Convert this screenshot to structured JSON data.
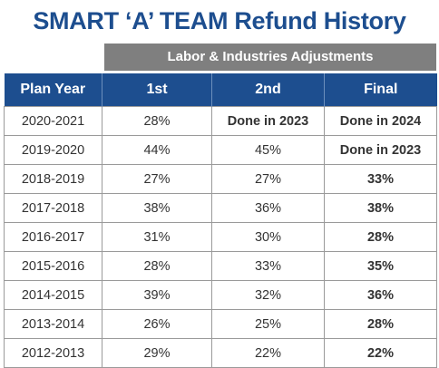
{
  "title": "SMART ‘A’ TEAM Refund History",
  "group_header": "Labor & Industries Adjustments",
  "columns": [
    "Plan Year",
    "1st",
    "2nd",
    "Final"
  ],
  "rows": [
    {
      "year": "2020-2021",
      "first": "28%",
      "second": "Done in 2023",
      "final": "Done in 2024",
      "second_bold": true
    },
    {
      "year": "2019-2020",
      "first": "44%",
      "second": "45%",
      "final": "Done in 2023",
      "second_bold": false
    },
    {
      "year": "2018-2019",
      "first": "27%",
      "second": "27%",
      "final": "33%",
      "second_bold": false
    },
    {
      "year": "2017-2018",
      "first": "38%",
      "second": "36%",
      "final": "38%",
      "second_bold": false
    },
    {
      "year": "2016-2017",
      "first": "31%",
      "second": "30%",
      "final": "28%",
      "second_bold": false
    },
    {
      "year": "2015-2016",
      "first": "28%",
      "second": "33%",
      "final": "35%",
      "second_bold": false
    },
    {
      "year": "2014-2015",
      "first": "39%",
      "second": "32%",
      "final": "36%",
      "second_bold": false
    },
    {
      "year": "2013-2014",
      "first": "26%",
      "second": "25%",
      "final": "28%",
      "second_bold": false
    },
    {
      "year": "2012-2013",
      "first": "29%",
      "second": "22%",
      "final": "22%",
      "second_bold": false
    }
  ],
  "colors": {
    "title": "#1d4e8f",
    "header_bg": "#1d4e8f",
    "group_header_bg": "#7f7f7f",
    "border": "#9a9a9a"
  }
}
